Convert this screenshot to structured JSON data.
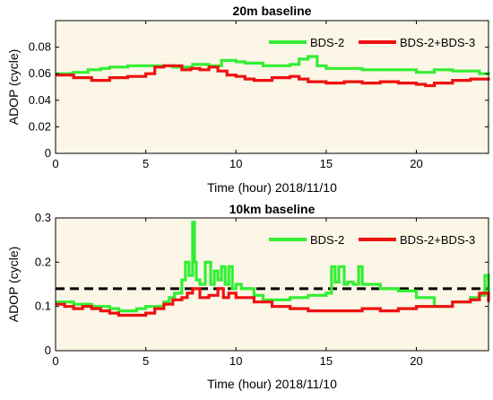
{
  "chart_data": [
    {
      "type": "line",
      "title": "20m baseline",
      "xlabel": "Time (hour) 2018/11/10",
      "ylabel": "ADOP (cycle)",
      "xlim": [
        0,
        24
      ],
      "ylim": [
        0,
        0.1
      ],
      "xticks": [
        0,
        5,
        10,
        15,
        20
      ],
      "yticks": [
        0,
        0.02,
        0.04,
        0.06,
        0.08
      ],
      "legend_position": "top-right",
      "background": "#fcf6e6",
      "series": [
        {
          "name": "BDS-2",
          "color": "#33ee33",
          "x": [
            0,
            1,
            1.8,
            2.5,
            3,
            4,
            5,
            6,
            6.5,
            7.6,
            8.5,
            9.2,
            10,
            10.5,
            11.5,
            12,
            13,
            13.5,
            14,
            14.5,
            15,
            16,
            17,
            18,
            19,
            20,
            21,
            22,
            23,
            23.5,
            24
          ],
          "values": [
            0.06,
            0.061,
            0.063,
            0.064,
            0.065,
            0.066,
            0.066,
            0.066,
            0.065,
            0.067,
            0.066,
            0.07,
            0.069,
            0.068,
            0.066,
            0.066,
            0.067,
            0.071,
            0.073,
            0.066,
            0.064,
            0.064,
            0.063,
            0.063,
            0.063,
            0.061,
            0.063,
            0.062,
            0.062,
            0.06,
            0.061
          ]
        },
        {
          "name": "BDS-2+BDS-3",
          "color": "#ee1111",
          "x": [
            0,
            1,
            2,
            3,
            4,
            5,
            5.5,
            6,
            7,
            7.5,
            8,
            8.5,
            9,
            9.5,
            10,
            10.5,
            11,
            11.5,
            12,
            13,
            13.5,
            14,
            15,
            16,
            17,
            18,
            19,
            20,
            20.5,
            21,
            22,
            23,
            24
          ],
          "values": [
            0.059,
            0.057,
            0.055,
            0.057,
            0.058,
            0.06,
            0.065,
            0.066,
            0.063,
            0.064,
            0.063,
            0.065,
            0.062,
            0.059,
            0.058,
            0.056,
            0.055,
            0.055,
            0.057,
            0.058,
            0.056,
            0.054,
            0.053,
            0.054,
            0.053,
            0.054,
            0.053,
            0.052,
            0.051,
            0.053,
            0.055,
            0.056,
            0.055
          ]
        }
      ]
    },
    {
      "type": "line",
      "title": "10km baseline",
      "xlabel": "Time (hour) 2018/11/10",
      "ylabel": "ADOP (cycle)",
      "xlim": [
        0,
        24
      ],
      "ylim": [
        0,
        0.3
      ],
      "xticks": [
        0,
        5,
        10,
        15,
        20
      ],
      "yticks": [
        0,
        0.1,
        0.2,
        0.3
      ],
      "legend_position": "top-right",
      "background": "#fcf6e6",
      "reference_line": {
        "y": 0.14,
        "style": "dashed",
        "color": "#000000"
      },
      "series": [
        {
          "name": "BDS-2",
          "color": "#33ee33",
          "x": [
            0,
            0.5,
            1,
            1.5,
            2,
            2.5,
            3,
            3.5,
            4,
            4.5,
            5,
            5.5,
            6,
            6.3,
            6.6,
            7,
            7.2,
            7.4,
            7.6,
            7.7,
            7.8,
            8,
            8.3,
            8.6,
            8.8,
            9,
            9.2,
            9.4,
            9.6,
            9.8,
            10,
            10.3,
            11,
            11.5,
            12,
            12.5,
            13,
            14,
            15,
            15.3,
            15.5,
            15.7,
            16,
            16.2,
            16.5,
            16.8,
            17,
            18,
            19,
            20,
            21,
            22,
            23,
            23.5,
            23.8,
            24
          ],
          "values": [
            0.11,
            0.11,
            0.105,
            0.105,
            0.1,
            0.1,
            0.095,
            0.09,
            0.09,
            0.095,
            0.1,
            0.1,
            0.11,
            0.12,
            0.13,
            0.16,
            0.2,
            0.17,
            0.29,
            0.2,
            0.16,
            0.15,
            0.2,
            0.15,
            0.18,
            0.16,
            0.19,
            0.15,
            0.19,
            0.14,
            0.15,
            0.14,
            0.125,
            0.115,
            0.115,
            0.115,
            0.12,
            0.125,
            0.13,
            0.19,
            0.155,
            0.19,
            0.15,
            0.155,
            0.15,
            0.19,
            0.15,
            0.14,
            0.135,
            0.12,
            0.1,
            0.11,
            0.12,
            0.125,
            0.17,
            0.13
          ]
        },
        {
          "name": "BDS-2+BDS-3",
          "color": "#ee1111",
          "x": [
            0,
            0.5,
            1,
            1.5,
            2,
            2.5,
            3,
            3.5,
            4,
            4.5,
            5,
            5.5,
            6,
            6.5,
            7,
            7.3,
            7.6,
            8,
            8.5,
            9,
            9.3,
            9.6,
            10,
            11,
            12,
            13,
            14,
            15,
            16,
            17,
            18,
            19,
            20,
            21,
            22,
            23,
            23.5,
            24
          ],
          "values": [
            0.105,
            0.1,
            0.095,
            0.1,
            0.095,
            0.09,
            0.085,
            0.08,
            0.08,
            0.08,
            0.085,
            0.095,
            0.105,
            0.115,
            0.12,
            0.13,
            0.14,
            0.12,
            0.125,
            0.14,
            0.12,
            0.13,
            0.12,
            0.11,
            0.1,
            0.095,
            0.09,
            0.09,
            0.09,
            0.095,
            0.09,
            0.095,
            0.1,
            0.1,
            0.11,
            0.115,
            0.13,
            0.11
          ]
        }
      ]
    }
  ]
}
